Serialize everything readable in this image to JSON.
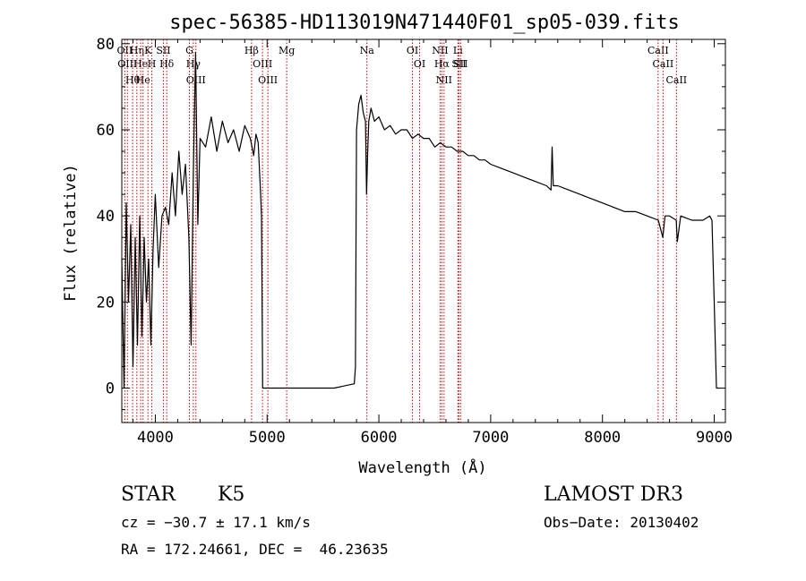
{
  "chart_data": {
    "type": "line",
    "title": "spec-56385-HD113019N471440F01_sp05-039.fits",
    "xlabel": "Wavelength (Å)",
    "ylabel": "Flux (relative)",
    "xlim": [
      3700,
      9100
    ],
    "ylim": [
      -8,
      81
    ],
    "xticks": [
      4000,
      5000,
      6000,
      7000,
      8000,
      9000
    ],
    "yticks": [
      0,
      20,
      40,
      60,
      80
    ],
    "line_color": "#000000",
    "marker_color": "#cc0000",
    "series": [
      {
        "x": [
          3700,
          3720,
          3740,
          3760,
          3780,
          3800,
          3820,
          3840,
          3860,
          3880,
          3900,
          3920,
          3940,
          3960,
          3980,
          4000,
          4030,
          4060,
          4090,
          4120,
          4150,
          4180,
          4210,
          4240,
          4270,
          4300,
          4320,
          4340,
          4360,
          4380,
          4400,
          4450,
          4500,
          4550,
          4600,
          4650,
          4700,
          4750,
          4800,
          4850,
          4880,
          4900,
          4920,
          4940,
          4950,
          4960,
          5000,
          5200,
          5400,
          5600,
          5780,
          5790,
          5800,
          5820,
          5840,
          5860,
          5880,
          5890,
          5900,
          5910,
          5930,
          5960,
          6000,
          6050,
          6100,
          6150,
          6200,
          6250,
          6300,
          6350,
          6400,
          6450,
          6500,
          6550,
          6600,
          6650,
          6700,
          6750,
          6800,
          6850,
          6900,
          6950,
          7000,
          7100,
          7200,
          7300,
          7400,
          7500,
          7540,
          7550,
          7560,
          7600,
          7700,
          7800,
          7900,
          8000,
          8100,
          8200,
          8300,
          8400,
          8500,
          8540,
          8560,
          8600,
          8660,
          8670,
          8700,
          8800,
          8900,
          8960,
          8980,
          9000,
          9020,
          9040
        ],
        "values": [
          30,
          0,
          43,
          20,
          38,
          5,
          35,
          10,
          40,
          12,
          35,
          20,
          30,
          10,
          32,
          45,
          28,
          40,
          42,
          38,
          50,
          40,
          55,
          45,
          52,
          35,
          10,
          50,
          78,
          38,
          58,
          56,
          63,
          55,
          62,
          57,
          60,
          55,
          61,
          58,
          54,
          59,
          57,
          46,
          40,
          0,
          0,
          0,
          0,
          0,
          1,
          5,
          60,
          66,
          68,
          64,
          62,
          45,
          55,
          62,
          65,
          62,
          63,
          60,
          61,
          59,
          60,
          60,
          58,
          59,
          58,
          58,
          56,
          57,
          56,
          56,
          55,
          55,
          54,
          54,
          53,
          53,
          52,
          51,
          50,
          49,
          48,
          47,
          46,
          56,
          47,
          47,
          46,
          45,
          44,
          43,
          42,
          41,
          41,
          40,
          39,
          35,
          40,
          40,
          39,
          34,
          40,
          39,
          39,
          40,
          39,
          20,
          0,
          0
        ]
      }
    ],
    "lines": [
      {
        "wl": 3727,
        "label": "OII"
      },
      {
        "wl": 3750,
        "label": "OIII"
      },
      {
        "wl": 3797,
        "label": "Hθ"
      },
      {
        "wl": 3835,
        "label": "Hη"
      },
      {
        "wl": 3869,
        "label": "He"
      },
      {
        "wl": 3890,
        "label": "He"
      },
      {
        "wl": 3934,
        "label": "K"
      },
      {
        "wl": 3969,
        "label": "H"
      },
      {
        "wl": 4072,
        "label": "SII"
      },
      {
        "wl": 4102,
        "label": "Hδ"
      },
      {
        "wl": 4305,
        "label": "G"
      },
      {
        "wl": 4340,
        "label": "Hγ"
      },
      {
        "wl": 4363,
        "label": "OIII"
      },
      {
        "wl": 4861,
        "label": "Hβ"
      },
      {
        "wl": 4959,
        "label": "OIII"
      },
      {
        "wl": 5007,
        "label": "OIII"
      },
      {
        "wl": 5175,
        "label": "Mg"
      },
      {
        "wl": 5893,
        "label": "Na"
      },
      {
        "wl": 6300,
        "label": "OI"
      },
      {
        "wl": 6364,
        "label": "OI"
      },
      {
        "wl": 6548,
        "label": "NII"
      },
      {
        "wl": 6563,
        "label": "Hα"
      },
      {
        "wl": 6583,
        "label": "NII"
      },
      {
        "wl": 6707,
        "label": "Li"
      },
      {
        "wl": 6716,
        "label": "SII"
      },
      {
        "wl": 6731,
        "label": "SII"
      },
      {
        "wl": 8498,
        "label": "CaII"
      },
      {
        "wl": 8542,
        "label": "CaII"
      },
      {
        "wl": 8662,
        "label": "CaII"
      }
    ]
  },
  "info": {
    "object_class": "STAR",
    "subclass": "K5",
    "survey": "LAMOST DR3",
    "cz_line": "cz = −30.7 ± 17.1 km/s",
    "obs_date": "Obs−Date: 20130402",
    "radec": "RA = 172.24661, DEC =  46.23635"
  }
}
